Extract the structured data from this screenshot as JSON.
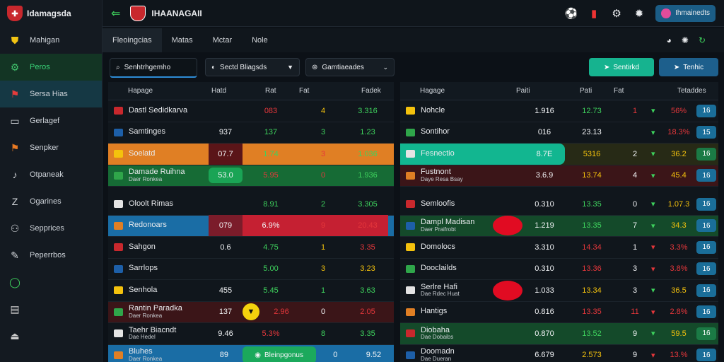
{
  "app": {
    "title": "Idamagsda"
  },
  "sidebar": {
    "items": [
      {
        "label": "Mahigan",
        "icon": "shield-icon"
      },
      {
        "label": "Peros",
        "icon": "gear-icon"
      },
      {
        "label": "Sersa Hias",
        "icon": "flag-icon"
      },
      {
        "label": "Gerlagef",
        "icon": "monitor-icon"
      },
      {
        "label": "Senpker",
        "icon": "flag-icon"
      },
      {
        "label": "Otpaneak",
        "icon": "bell-icon"
      },
      {
        "label": "Ogarines",
        "icon": "chart-icon"
      },
      {
        "label": "Sepprices",
        "icon": "people-icon"
      },
      {
        "label": "Peperrbos",
        "icon": "quill-icon"
      }
    ]
  },
  "topbar": {
    "title": "IHAANAGAII",
    "user_label": "Ihmainedts"
  },
  "tabs": [
    {
      "label": "Fleoingcias"
    },
    {
      "label": "Matas"
    },
    {
      "label": "Mctar"
    },
    {
      "label": "Nole"
    }
  ],
  "controls": {
    "search_value": "Senhtrhgemho",
    "select1": "Sectd Bliagsds",
    "select2": "Gamtiaeades",
    "button1": "Sentirkd",
    "button2": "Tenhic"
  },
  "left_table": {
    "headers": [
      "Hapage",
      "Hatd",
      "Rat",
      "Fat",
      "Fadek"
    ],
    "rows": [
      {
        "name": "Dastl Sedidkarva",
        "sub": "",
        "c1": "",
        "c2": "083",
        "c3": "4",
        "c4": "3.316",
        "style": ""
      },
      {
        "name": "Samtinges",
        "sub": "",
        "c1": "937",
        "c2": "137",
        "c3": "3",
        "c4": "1.23",
        "style": ""
      },
      {
        "name": "Soelatd",
        "sub": "",
        "c1": "07.7",
        "c2": "1.74",
        "c3": "3",
        "c4": "1.036",
        "style": "orange"
      },
      {
        "name": "Damade Ruihna",
        "sub": "Daer Ronkea",
        "c1": "53.0",
        "c2": "5.95",
        "c3": "0",
        "c4": "1.936",
        "style": "green"
      },
      {
        "name": "Oloolt Rimas",
        "sub": "",
        "c1": "",
        "c2": "8.91",
        "c3": "2",
        "c4": "3.305",
        "style": ""
      },
      {
        "name": "Redonoars",
        "sub": "",
        "c1": "079",
        "c2": "6.9%",
        "c3": "9",
        "c4": "20.43",
        "style": "blue"
      },
      {
        "name": "Sahgon",
        "sub": "",
        "c1": "0.6",
        "c2": "4.75",
        "c3": "1",
        "c4": "3.35",
        "style": ""
      },
      {
        "name": "Sarrlops",
        "sub": "",
        "c1": "",
        "c2": "5.00",
        "c3": "3",
        "c4": "3.23",
        "style": ""
      },
      {
        "name": "Senhola",
        "sub": "",
        "c1": "455",
        "c2": "5.45",
        "c3": "1",
        "c4": "3.63",
        "style": ""
      },
      {
        "name": "Rantin Paradka",
        "sub": "Daer Ronkea",
        "c1": "137",
        "c2": "2.96",
        "c3": "0",
        "c4": "2.05",
        "style": "dred"
      },
      {
        "name": "Taehr Biacndt",
        "sub": "Dae Hedel",
        "c1": "9.46",
        "c2": "5.3%",
        "c3": "8",
        "c4": "3.35",
        "style": ""
      },
      {
        "name": "Bluhes",
        "sub": "Daer Ronkea",
        "c1": "89",
        "c2": "",
        "c3": "0",
        "c4": "9.52",
        "style": "blue"
      }
    ],
    "green_button": "Bleinpgonus"
  },
  "right_table": {
    "headers": [
      "Hagage",
      "Paiti",
      "Pati",
      "Fat",
      "Tetaddes"
    ],
    "rows": [
      {
        "name": "Nohcle",
        "sub": "",
        "c1": "1.916",
        "c2": "12.73",
        "c3": "1",
        "c4": "56%",
        "pill": "16",
        "style": ""
      },
      {
        "name": "Sontihor",
        "sub": "",
        "c1": "016",
        "c2": "23.13",
        "c3": "",
        "c4": "18.3%",
        "pill": "15",
        "style": ""
      },
      {
        "name": "Fesnectio",
        "sub": "",
        "c1": "8.7E",
        "c2": "5316",
        "c3": "2",
        "c4": "36.2",
        "pill": "16",
        "style": "teal"
      },
      {
        "name": "Fustnont",
        "sub": "Daye Resa Bsay",
        "c1": "3.6.9",
        "c2": "13.74",
        "c3": "4",
        "c4": "45.4",
        "pill": "16",
        "style": "dred"
      },
      {
        "name": "Semloofis",
        "sub": "",
        "c1": "0.310",
        "c2": "13.35",
        "c3": "0",
        "c4": "1.07.3",
        "pill": "16",
        "style": ""
      },
      {
        "name": "Dampl Madisan",
        "sub": "Daer Praifrobt",
        "c1": "1.219",
        "c2": "13.35",
        "c3": "7",
        "c4": "34.3",
        "pill": "16",
        "style": "dgreen"
      },
      {
        "name": "Domolocs",
        "sub": "",
        "c1": "3.310",
        "c2": "14.34",
        "c3": "1",
        "c4": "3.3%",
        "pill": "16",
        "style": ""
      },
      {
        "name": "Dooclailds",
        "sub": "",
        "c1": "0.310",
        "c2": "13.36",
        "c3": "3",
        "c4": "3.8%",
        "pill": "16",
        "style": ""
      },
      {
        "name": "Serlre Hafi",
        "sub": "Dae Rdec Huat",
        "c1": "1.033",
        "c2": "13.34",
        "c3": "3",
        "c4": "36.5",
        "pill": "16",
        "style": ""
      },
      {
        "name": "Hantigs",
        "sub": "",
        "c1": "0.816",
        "c2": "13.35",
        "c3": "11",
        "c4": "2.8%",
        "pill": "16",
        "style": ""
      },
      {
        "name": "Diobaha",
        "sub": "Dae Dobaibs",
        "c1": "0.870",
        "c2": "13.52",
        "c3": "9",
        "c4": "59.5",
        "pill": "16",
        "style": "dgreen"
      },
      {
        "name": "Doomadn",
        "sub": "Dae Dueran",
        "c1": "6.679",
        "c2": "2.573",
        "c3": "9",
        "c4": "13.%",
        "pill": "16",
        "style": ""
      }
    ]
  }
}
